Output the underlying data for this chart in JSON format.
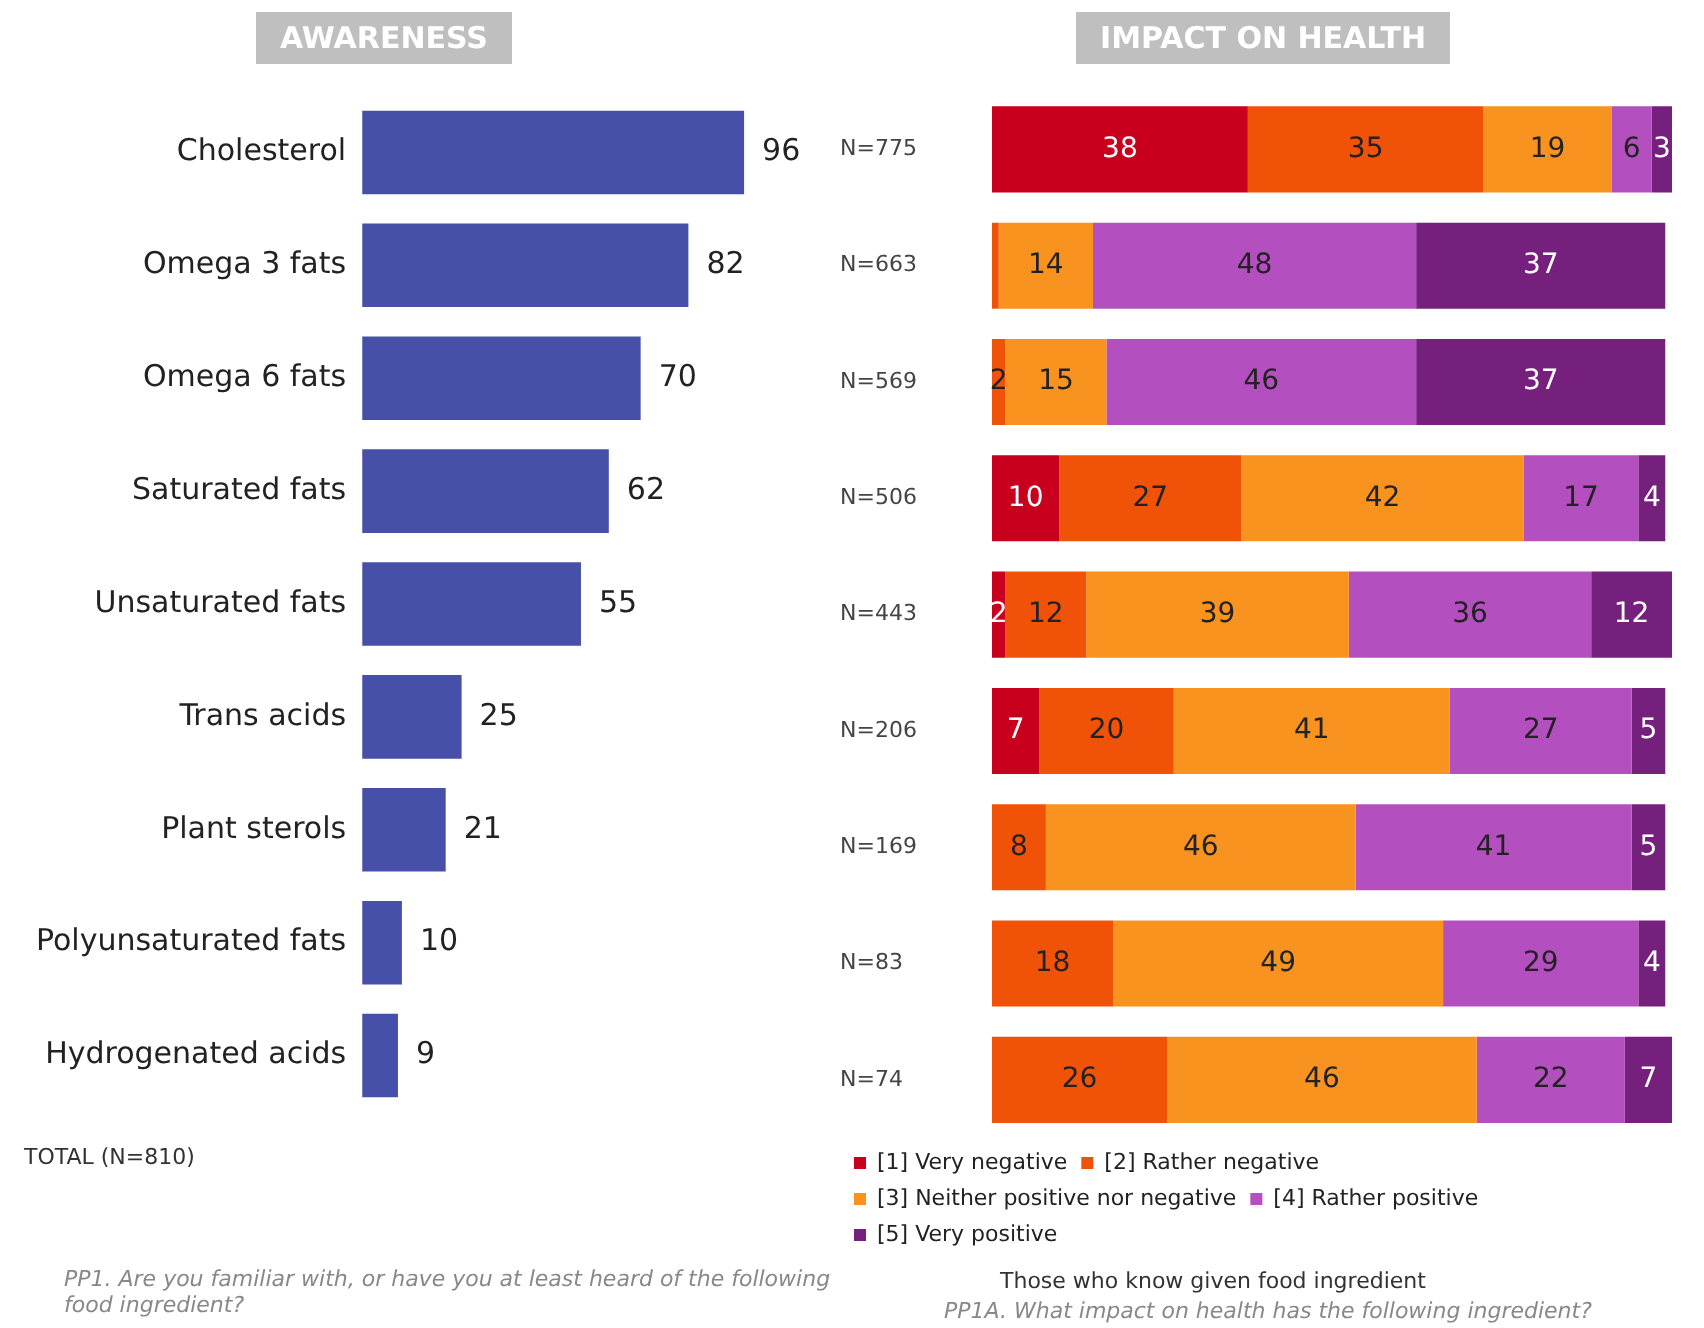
{
  "chart_data": [
    {
      "type": "bar",
      "orientation": "horizontal",
      "title": "AWARENESS",
      "categories": [
        "Cholesterol",
        "Omega 3 fats",
        "Omega 6 fats",
        "Saturated fats",
        "Unsaturated fats",
        "Trans acids",
        "Plant sterols",
        "Polyunsaturated fats",
        "Hydrogenated acids"
      ],
      "values": [
        96,
        82,
        70,
        62,
        55,
        25,
        21,
        10,
        9
      ],
      "color": "#4650a8",
      "data_labels": true,
      "tick_labels": "y",
      "grid": false,
      "legend": false,
      "annotations": [
        "TOTAL (N=810)",
        "PP1. Are you familiar with, or have you at least heard of the following food ingredient?"
      ]
    },
    {
      "type": "bar",
      "orientation": "horizontal",
      "stacked": true,
      "title": "IMPACT ON HEALTH",
      "categories": [
        "N=775",
        "N=663",
        "N=569",
        "N=506",
        "N=443",
        "N=206",
        "N=169",
        "N=83",
        "N=74"
      ],
      "xlim": [
        0,
        101
      ],
      "tick_labels": "y",
      "grid": false,
      "legend": "bottom",
      "series": [
        {
          "name": "[1] Very negative",
          "color": "#c8001e",
          "values": [
            38,
            null,
            null,
            10,
            2,
            7,
            null,
            null,
            null
          ],
          "value_labels": [
            "38",
            null,
            null,
            "10",
            "2",
            "7",
            null,
            null,
            null
          ]
        },
        {
          "name": "[2] Rather negative",
          "color": "#f05308",
          "values": [
            35,
            1,
            2,
            27,
            12,
            20,
            8,
            18,
            26
          ],
          "value_labels": [
            "35",
            null,
            "2",
            "27",
            "12",
            "20",
            "8",
            "18",
            "26"
          ]
        },
        {
          "name": "[3] Neither positive nor negative",
          "color": "#f7931e",
          "values": [
            19,
            14,
            15,
            42,
            39,
            41,
            46,
            49,
            46
          ],
          "value_labels": [
            "19",
            "14",
            "15",
            "42",
            "39",
            "41",
            "46",
            "49",
            "46"
          ]
        },
        {
          "name": "[4] Rather positive",
          "color": "#b44fbf",
          "values": [
            6,
            48,
            46,
            17,
            36,
            27,
            41,
            29,
            22
          ],
          "value_labels": [
            "6",
            "48",
            "46",
            "17",
            "36",
            "27",
            "41",
            "29",
            "22"
          ]
        },
        {
          "name": "[5] Very positive",
          "color": "#76207d",
          "values": [
            3,
            37,
            37,
            4,
            12,
            5,
            5,
            4,
            7
          ],
          "value_labels": [
            "3",
            "37",
            "37",
            "4",
            "12",
            "5",
            "5",
            "4",
            "7"
          ]
        }
      ],
      "annotations": [
        "Those who know given food ingredient",
        "PP1A. What impact on health has the following ingredient?"
      ]
    }
  ]
}
